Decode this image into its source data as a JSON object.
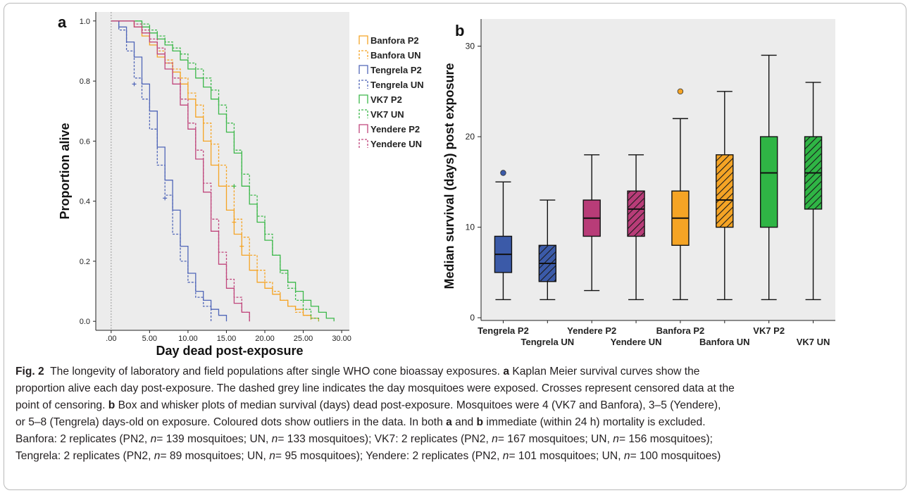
{
  "chart_data": [
    {
      "type": "line",
      "panel_label": "a",
      "xlabel": "Day dead post-exposure",
      "ylabel": "Proportion alive",
      "xlim": [
        -2,
        31
      ],
      "ylim": [
        -0.03,
        1.03
      ],
      "x_ticks": [
        0,
        5,
        10,
        15,
        20,
        25,
        30
      ],
      "x_tick_labels": [
        ".00",
        "5.00",
        "10.00",
        "15.00",
        "20.00",
        "25.00",
        "30.00"
      ],
      "y_ticks": [
        0,
        0.2,
        0.4,
        0.6,
        0.8,
        1.0
      ],
      "y_tick_labels": [
        "0.0",
        "0.2",
        "0.4",
        "0.6",
        "0.8",
        "1.0"
      ],
      "exposure_line_x": 0,
      "legend_position": "right",
      "background": "#ececec",
      "series": [
        {
          "name": "Banfora P2",
          "color": "#f5a425",
          "dash": false,
          "points": [
            [
              0,
              1.0
            ],
            [
              2,
              1.0
            ],
            [
              3,
              0.98
            ],
            [
              4,
              0.95
            ],
            [
              5,
              0.92
            ],
            [
              6,
              0.88
            ],
            [
              7,
              0.86
            ],
            [
              8,
              0.83
            ],
            [
              9,
              0.79
            ],
            [
              10,
              0.74
            ],
            [
              11,
              0.68
            ],
            [
              12,
              0.6
            ],
            [
              13,
              0.52
            ],
            [
              14,
              0.45
            ],
            [
              15,
              0.37
            ],
            [
              16,
              0.29
            ],
            [
              17,
              0.22
            ],
            [
              18,
              0.17
            ],
            [
              19,
              0.13
            ],
            [
              20,
              0.11
            ],
            [
              21,
              0.09
            ],
            [
              22,
              0.07
            ],
            [
              23,
              0.05
            ],
            [
              24,
              0.04
            ],
            [
              25,
              0.02
            ],
            [
              26,
              0.01
            ],
            [
              27,
              0.0
            ]
          ],
          "censored": []
        },
        {
          "name": "Banfora UN",
          "color": "#f5a425",
          "dash": true,
          "points": [
            [
              0,
              1.0
            ],
            [
              2,
              1.0
            ],
            [
              3,
              0.98
            ],
            [
              4,
              0.96
            ],
            [
              5,
              0.93
            ],
            [
              6,
              0.9
            ],
            [
              7,
              0.87
            ],
            [
              8,
              0.84
            ],
            [
              9,
              0.81
            ],
            [
              10,
              0.76
            ],
            [
              11,
              0.72
            ],
            [
              12,
              0.66
            ],
            [
              13,
              0.59
            ],
            [
              14,
              0.52
            ],
            [
              15,
              0.45
            ],
            [
              16,
              0.34
            ],
            [
              17,
              0.28
            ],
            [
              18,
              0.22
            ],
            [
              19,
              0.17
            ],
            [
              20,
              0.13
            ],
            [
              21,
              0.1
            ],
            [
              22,
              0.07
            ],
            [
              23,
              0.05
            ],
            [
              24,
              0.03
            ],
            [
              25,
              0.02
            ],
            [
              26,
              0.0
            ]
          ],
          "censored": [
            [
              16,
              0.33
            ],
            [
              17,
              0.25
            ]
          ]
        },
        {
          "name": "Tengrela P2",
          "color": "#5066b8",
          "dash": false,
          "points": [
            [
              0,
              1.0
            ],
            [
              1,
              0.98
            ],
            [
              2,
              0.93
            ],
            [
              3,
              0.88
            ],
            [
              4,
              0.79
            ],
            [
              5,
              0.7
            ],
            [
              6,
              0.58
            ],
            [
              7,
              0.47
            ],
            [
              8,
              0.37
            ],
            [
              9,
              0.25
            ],
            [
              10,
              0.16
            ],
            [
              11,
              0.1
            ],
            [
              12,
              0.07
            ],
            [
              13,
              0.04
            ],
            [
              14,
              0.02
            ],
            [
              15,
              0.0
            ]
          ],
          "censored": [
            [
              3,
              0.79
            ],
            [
              7,
              0.41
            ]
          ]
        },
        {
          "name": "Tengrela UN",
          "color": "#5066b8",
          "dash": true,
          "points": [
            [
              0,
              1.0
            ],
            [
              1,
              0.97
            ],
            [
              2,
              0.9
            ],
            [
              3,
              0.81
            ],
            [
              4,
              0.74
            ],
            [
              5,
              0.64
            ],
            [
              6,
              0.52
            ],
            [
              7,
              0.42
            ],
            [
              8,
              0.29
            ],
            [
              9,
              0.2
            ],
            [
              10,
              0.13
            ],
            [
              11,
              0.08
            ],
            [
              12,
              0.05
            ],
            [
              13,
              0.0
            ]
          ],
          "censored": []
        },
        {
          "name": "VK7 P2",
          "color": "#3cb84a",
          "dash": false,
          "points": [
            [
              0,
              1.0
            ],
            [
              3,
              1.0
            ],
            [
              4,
              0.98
            ],
            [
              5,
              0.96
            ],
            [
              6,
              0.94
            ],
            [
              7,
              0.92
            ],
            [
              8,
              0.9
            ],
            [
              9,
              0.87
            ],
            [
              10,
              0.84
            ],
            [
              11,
              0.81
            ],
            [
              12,
              0.78
            ],
            [
              13,
              0.74
            ],
            [
              14,
              0.69
            ],
            [
              15,
              0.63
            ],
            [
              16,
              0.56
            ],
            [
              17,
              0.45
            ],
            [
              18,
              0.39
            ],
            [
              19,
              0.33
            ],
            [
              20,
              0.27
            ],
            [
              21,
              0.22
            ],
            [
              22,
              0.17
            ],
            [
              23,
              0.13
            ],
            [
              24,
              0.1
            ],
            [
              25,
              0.07
            ],
            [
              26,
              0.05
            ],
            [
              27,
              0.03
            ],
            [
              28,
              0.01
            ],
            [
              29,
              0.0
            ]
          ],
          "censored": [
            [
              16,
              0.45
            ]
          ]
        },
        {
          "name": "VK7 UN",
          "color": "#3cb84a",
          "dash": true,
          "points": [
            [
              0,
              1.0
            ],
            [
              3,
              1.0
            ],
            [
              4,
              0.99
            ],
            [
              5,
              0.97
            ],
            [
              6,
              0.95
            ],
            [
              7,
              0.93
            ],
            [
              8,
              0.91
            ],
            [
              9,
              0.89
            ],
            [
              10,
              0.86
            ],
            [
              11,
              0.84
            ],
            [
              12,
              0.81
            ],
            [
              13,
              0.77
            ],
            [
              14,
              0.72
            ],
            [
              15,
              0.66
            ],
            [
              16,
              0.57
            ],
            [
              17,
              0.49
            ],
            [
              18,
              0.42
            ],
            [
              19,
              0.35
            ],
            [
              20,
              0.29
            ],
            [
              21,
              0.22
            ],
            [
              22,
              0.16
            ],
            [
              23,
              0.11
            ],
            [
              24,
              0.07
            ],
            [
              25,
              0.04
            ],
            [
              26,
              0.01
            ],
            [
              27,
              0.0
            ]
          ],
          "censored": []
        },
        {
          "name": "Yendere P2",
          "color": "#c0467c",
          "dash": false,
          "points": [
            [
              0,
              1.0
            ],
            [
              2,
              1.0
            ],
            [
              3,
              0.98
            ],
            [
              4,
              0.96
            ],
            [
              5,
              0.93
            ],
            [
              6,
              0.89
            ],
            [
              7,
              0.84
            ],
            [
              8,
              0.79
            ],
            [
              9,
              0.72
            ],
            [
              10,
              0.64
            ],
            [
              11,
              0.54
            ],
            [
              12,
              0.43
            ],
            [
              13,
              0.3
            ],
            [
              14,
              0.19
            ],
            [
              15,
              0.11
            ],
            [
              16,
              0.06
            ],
            [
              17,
              0.03
            ],
            [
              18,
              0.0
            ]
          ],
          "censored": []
        },
        {
          "name": "Yendere UN",
          "color": "#c0467c",
          "dash": true,
          "points": [
            [
              0,
              1.0
            ],
            [
              2,
              1.0
            ],
            [
              3,
              0.99
            ],
            [
              4,
              0.97
            ],
            [
              5,
              0.94
            ],
            [
              6,
              0.91
            ],
            [
              7,
              0.86
            ],
            [
              8,
              0.81
            ],
            [
              9,
              0.74
            ],
            [
              10,
              0.66
            ],
            [
              11,
              0.57
            ],
            [
              12,
              0.46
            ],
            [
              13,
              0.34
            ],
            [
              14,
              0.23
            ],
            [
              15,
              0.14
            ],
            [
              16,
              0.08
            ],
            [
              17,
              0.03
            ],
            [
              18,
              0.0
            ]
          ],
          "censored": []
        }
      ]
    },
    {
      "type": "box",
      "panel_label": "b",
      "xlabel": "",
      "ylabel": "Median survival (days) post exposure",
      "ylim": [
        -0.3,
        33
      ],
      "y_ticks": [
        0,
        10,
        20,
        30
      ],
      "y_tick_labels": [
        "0",
        "10",
        "20",
        "30"
      ],
      "background": "#ececec",
      "categories": [
        "Tengrela P2",
        "Tengrela UN",
        "Yendere P2",
        "Yendere UN",
        "Banfora P2",
        "Banfora UN",
        "VK7 P2",
        "VK7 UN"
      ],
      "boxes": [
        {
          "category": "Tengrela P2",
          "color": "#3b5aa8",
          "hatched": false,
          "whisker_low": 2,
          "q1": 5,
          "median": 7,
          "q3": 9,
          "whisker_high": 15,
          "outliers": [
            16
          ]
        },
        {
          "category": "Tengrela UN",
          "color": "#3b5aa8",
          "hatched": true,
          "whisker_low": 2,
          "q1": 4,
          "median": 6,
          "q3": 8,
          "whisker_high": 13,
          "outliers": []
        },
        {
          "category": "Yendere P2",
          "color": "#b83c78",
          "hatched": false,
          "whisker_low": 3,
          "q1": 9,
          "median": 11,
          "q3": 13,
          "whisker_high": 18,
          "outliers": []
        },
        {
          "category": "Yendere UN",
          "color": "#b83c78",
          "hatched": true,
          "whisker_low": 2,
          "q1": 9,
          "median": 12,
          "q3": 14,
          "whisker_high": 18,
          "outliers": []
        },
        {
          "category": "Banfora P2",
          "color": "#f5a425",
          "hatched": false,
          "whisker_low": 2,
          "q1": 8,
          "median": 11,
          "q3": 14,
          "whisker_high": 22,
          "outliers": [
            25
          ]
        },
        {
          "category": "Banfora UN",
          "color": "#f5a425",
          "hatched": true,
          "whisker_low": 2,
          "q1": 10,
          "median": 13,
          "q3": 18,
          "whisker_high": 25,
          "outliers": []
        },
        {
          "category": "VK7 P2",
          "color": "#2fb545",
          "hatched": false,
          "whisker_low": 2,
          "q1": 10,
          "median": 16,
          "q3": 20,
          "whisker_high": 29,
          "outliers": []
        },
        {
          "category": "VK7 UN",
          "color": "#2fb545",
          "hatched": true,
          "whisker_low": 2,
          "q1": 12,
          "median": 16,
          "q3": 20,
          "whisker_high": 26,
          "outliers": []
        }
      ]
    }
  ],
  "caption": {
    "fig_label": "Fig. 2",
    "l1": "The longevity of laboratory and field populations after single WHO cone bioassay exposures.",
    "l1_bold": "a",
    "l1_tail": "Kaplan Meier survival curves show the",
    "l2": "proportion alive each day post-exposure. The dashed grey line indicates the day mosquitoes were exposed. Crosses represent censored data at the",
    "l3_a": "point of censoring.",
    "l3_bold": "b",
    "l3_b": "Box and whisker plots of median survival (days) dead post-exposure. Mosquitoes were 4 (VK7 and Banfora), 3–5 (Yendere),",
    "l4_a": "or 5–8 (Tengrela) days-old on exposure. Coloured dots show outliers in the data. In both",
    "l4_bold1": "a",
    "l4_and": "and",
    "l4_bold2": "b",
    "l4_b": "immediate (within 24 h) mortality is excluded.",
    "l5_a": "Banfora: 2 replicates (PN2,",
    "l5_b": "= 139 mosquitoes; UN,",
    "l5_c": "= 133 mosquitoes); VK7: 2 replicates (PN2,",
    "l5_d": "= 167 mosquitoes; UN,",
    "l5_e": "= 156 mosquitoes);",
    "l6_a": "Tengrela: 2 replicates (PN2,",
    "l6_b": "= 89 mosquitoes; UN,",
    "l6_c": "= 95 mosquitoes); Yendere: 2 replicates (PN2,",
    "l6_d": "= 101 mosquitoes; UN,",
    "l6_e": "= 100 mosquitoes)",
    "n_symbol": "n"
  }
}
